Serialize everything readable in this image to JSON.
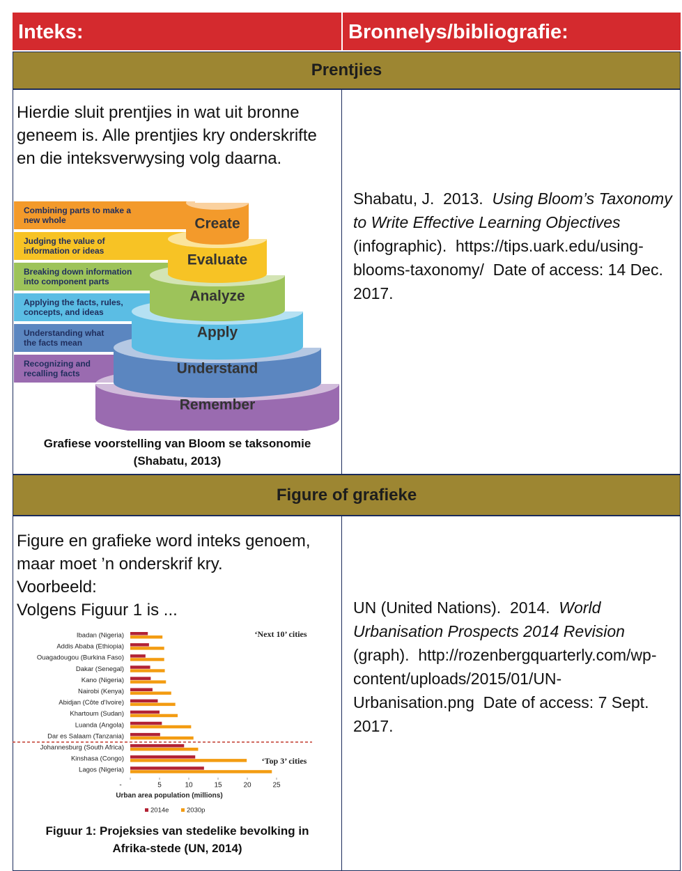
{
  "header": {
    "left": "Inteks:",
    "right": "Bronnelys/bibliografie:"
  },
  "sections": [
    {
      "title": "Prentjies",
      "text": [
        "Hierdie sluit prentjies in wat uit bronne geneem is. Alle prentjies kry onderskrifte en die inteksverwysing volg daarna."
      ],
      "figure": {
        "levels": [
          {
            "name": "Create",
            "desc": [
              "Combining parts to make a",
              "new whole"
            ],
            "color": "#f39a2b"
          },
          {
            "name": "Evaluate",
            "desc": [
              "Judging the value of",
              "information or ideas"
            ],
            "color": "#f7c325"
          },
          {
            "name": "Analyze",
            "desc": [
              "Breaking down information",
              "into component parts"
            ],
            "color": "#9dc35a"
          },
          {
            "name": "Apply",
            "desc": [
              "Applying the facts, rules,",
              "concepts, and ideas"
            ],
            "color": "#5bbde4"
          },
          {
            "name": "Understand",
            "desc": [
              "Understanding what",
              "the facts mean"
            ],
            "color": "#5b86c0"
          },
          {
            "name": "Remember",
            "desc": [
              "Recognizing and",
              "recalling facts"
            ],
            "color": "#9a6bb0"
          }
        ]
      },
      "caption": [
        "Grafiese voorstelling van Bloom se taksonomie",
        "(Shabatu, 2013)"
      ],
      "citation": {
        "before": "Shabatu, J.  2013.  ",
        "title": "Using Bloom’s Taxonomy to Write Effective Learning Objectives",
        "after": " (infographic).  https://tips.uark.edu/using-blooms-taxonomy/  Date of access: 14 Dec. 2017."
      }
    },
    {
      "title": "Figure of grafieke",
      "text": [
        "Figure en grafieke word inteks genoem, maar moet ’n onderskrif kry.",
        "Voorbeeld:",
        "Volgens Figuur 1 is ..."
      ],
      "caption": [
        "Figuur 1: Projeksies van stedelike bevolking in",
        "Afrika-stede (UN, 2014)"
      ],
      "citation": {
        "before": "UN (United Nations).  2014.  ",
        "title": "World Urbanisation Prospects 2014 Revision",
        "after": " (graph).  http://rozenbergquarterly.com/wp-content/uploads/2015/01/UN-Urbanisation.png  Date of access: 7 Sept. 2017."
      }
    }
  ],
  "chart_data": {
    "type": "bar",
    "orientation": "horizontal",
    "categories": [
      "Ibadan (Nigeria)",
      "Addis Ababa (Ethiopia)",
      "Ouagadougou (Burkina Faso)",
      "Dakar (Senegal)",
      "Kano (Nigeria)",
      "Nairobi (Kenya)",
      "Abidjan (Côte d'Ivoire)",
      "Khartoum (Sudan)",
      "Luanda (Angola)",
      "Dar es Salaam (Tanzania)",
      "Johannesburg (South Africa)",
      "Kinshasa (Congo)",
      "Lagos (Nigeria)"
    ],
    "series": [
      {
        "name": "2014e",
        "color": "#b22234",
        "values": [
          3,
          3.2,
          2.6,
          3.4,
          3.5,
          3.8,
          4.7,
          5,
          5.4,
          5.1,
          9.2,
          11.1,
          12.6
        ]
      },
      {
        "name": "2030p",
        "color": "#f39c12",
        "values": [
          5.5,
          5.8,
          5.8,
          5.9,
          6.1,
          7,
          7.7,
          8.1,
          10.4,
          10.8,
          11.6,
          19.9,
          24.2
        ]
      }
    ],
    "xlim": [
      0,
      25
    ],
    "xticks": [
      {
        "value": 0,
        "label": "-"
      },
      5,
      10,
      15,
      20,
      25
    ],
    "xlabel": "Urban area population (millions)",
    "annotations": [
      "‘Next 10’ cities",
      "‘Top 3’ cities"
    ]
  }
}
